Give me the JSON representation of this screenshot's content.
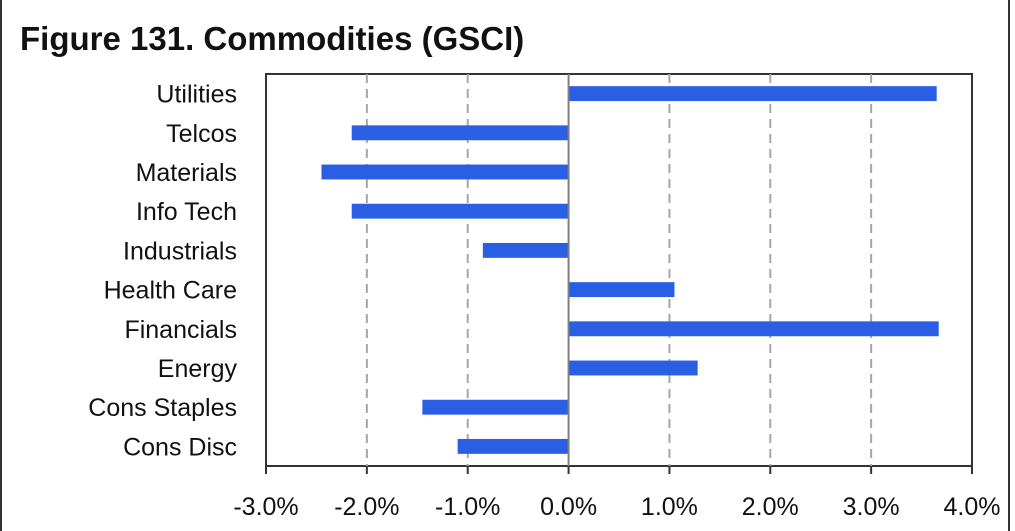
{
  "title": "Figure 131. Commodities (GSCI)",
  "colors": {
    "bar": "#2B5FE3",
    "grid": "#A6A6A6",
    "axis": "#7F7F7F"
  },
  "chart_data": {
    "type": "bar",
    "orientation": "horizontal",
    "title": "Figure 131. Commodities (GSCI)",
    "categories": [
      "Utilities",
      "Telcos",
      "Materials",
      "Info Tech",
      "Industrials",
      "Health Care",
      "Financials",
      "Energy",
      "Cons Staples",
      "Cons Disc"
    ],
    "values": [
      3.65,
      -2.15,
      -2.45,
      -2.15,
      -0.85,
      1.05,
      3.67,
      1.28,
      -1.45,
      -1.1
    ],
    "value_unit": "%",
    "xlim": [
      -3.0,
      4.0
    ],
    "xticks": [
      -3.0,
      -2.0,
      -1.0,
      0.0,
      1.0,
      2.0,
      3.0,
      4.0
    ],
    "xtick_labels": [
      "-3.0%",
      "-2.0%",
      "-1.0%",
      "0.0%",
      "1.0%",
      "2.0%",
      "3.0%",
      "4.0%"
    ],
    "grid": "vertical dashed",
    "legend": "none"
  }
}
